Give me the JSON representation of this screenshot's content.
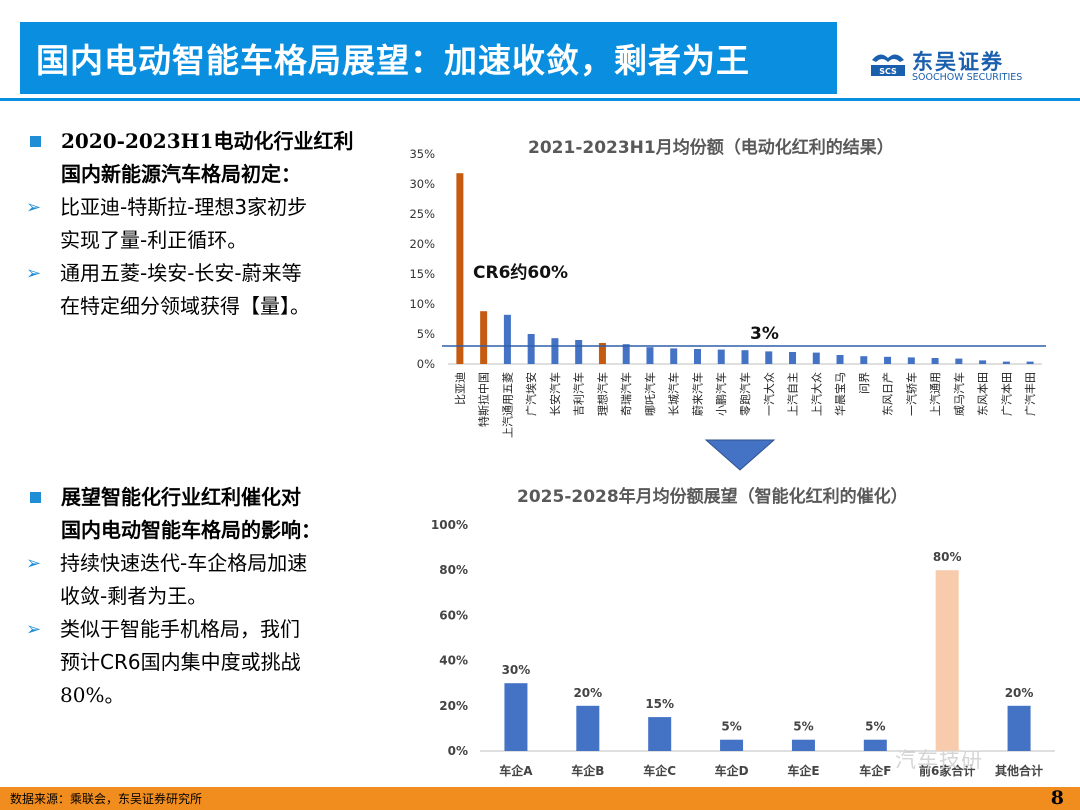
{
  "header": {
    "title": "国内电动智能车格局展望：加速收敛，剩者为王",
    "logo_cn": "东吴证券",
    "logo_en": "SOOCHOW SECURITIES",
    "logo_mark": "SCS",
    "accent_color": "#0a8fe0"
  },
  "section1": {
    "heading_line1": "2020-2023H1电动化行业红利",
    "heading_line2": "国内新能源汽车格局初定：",
    "bullets": [
      {
        "line1": "比亚迪-特斯拉-理想3家初步",
        "line2": "实现了量-利正循环。"
      },
      {
        "line1": "通用五菱-埃安-长安-蔚来等",
        "line2": "在特定细分领域获得【量】。"
      }
    ]
  },
  "section2": {
    "heading_line1": "展望智能化行业红利催化对",
    "heading_line2": "国内电动智能车格局的影响：",
    "bullets": [
      {
        "line1": "持续快速迭代-车企格局加速",
        "line2": "收敛-剩者为王。"
      },
      {
        "line1": "类似于智能手机格局，我们",
        "line2": "预计CR6国内集中度或挑战",
        "line3": "80%。"
      }
    ]
  },
  "chart_data": [
    {
      "type": "bar",
      "title": "2021-2023H1月均份额（电动化红利的结果）",
      "categories": [
        "比亚迪",
        "特斯拉中国",
        "上汽通用五菱",
        "广汽埃安",
        "长安汽车",
        "吉利汽车",
        "理想汽车",
        "奇瑞汽车",
        "哪吒汽车",
        "长城汽车",
        "蔚来汽车",
        "小鹏汽车",
        "零跑汽车",
        "一汽大众",
        "上汽自主",
        "上汽大众",
        "华晨宝马",
        "问界",
        "东风日产",
        "一汽轿车",
        "上汽通用",
        "威马汽车",
        "东风本田",
        "广汽本田",
        "广汽丰田"
      ],
      "values": [
        31.8,
        8.8,
        8.2,
        5.0,
        4.3,
        4.0,
        3.5,
        3.3,
        2.8,
        2.6,
        2.5,
        2.4,
        2.3,
        2.1,
        2.0,
        1.9,
        1.5,
        1.3,
        1.2,
        1.1,
        1.0,
        0.9,
        0.6,
        0.4,
        0.4
      ],
      "highlight_indices": [
        0,
        1,
        6
      ],
      "colors": {
        "bar": "#4472c4",
        "highlight": "#c55a11",
        "reference_line": "#2e5fa8"
      },
      "ylim": [
        0,
        35
      ],
      "yticks": [
        "0%",
        "5%",
        "10%",
        "15%",
        "20%",
        "25%",
        "30%",
        "35%"
      ],
      "reference_line_value": 3,
      "annotations": {
        "cr6": "CR6约60%",
        "line_label": "3%"
      }
    },
    {
      "type": "bar",
      "title": "2025-2028年月均份额展望（智能化红利的催化）",
      "categories": [
        "车企A",
        "车企B",
        "车企C",
        "车企D",
        "车企E",
        "车企F",
        "前6家合计",
        "其他合计"
      ],
      "values": [
        30,
        20,
        15,
        5,
        5,
        5,
        80,
        20
      ],
      "data_labels": [
        "30%",
        "20%",
        "15%",
        "5%",
        "5%",
        "5%",
        "80%",
        "20%"
      ],
      "colors": {
        "bar": "#4472c4",
        "highlight": "#f8cbad"
      },
      "highlight_indices": [
        6
      ],
      "ylim": [
        0,
        100
      ],
      "yticks": [
        "0%",
        "20%",
        "40%",
        "60%",
        "80%",
        "100%"
      ]
    }
  ],
  "footer": {
    "source": "数据来源：乘联会，东吴证券研究所",
    "page_number": "8",
    "watermark": "汽车技研"
  }
}
